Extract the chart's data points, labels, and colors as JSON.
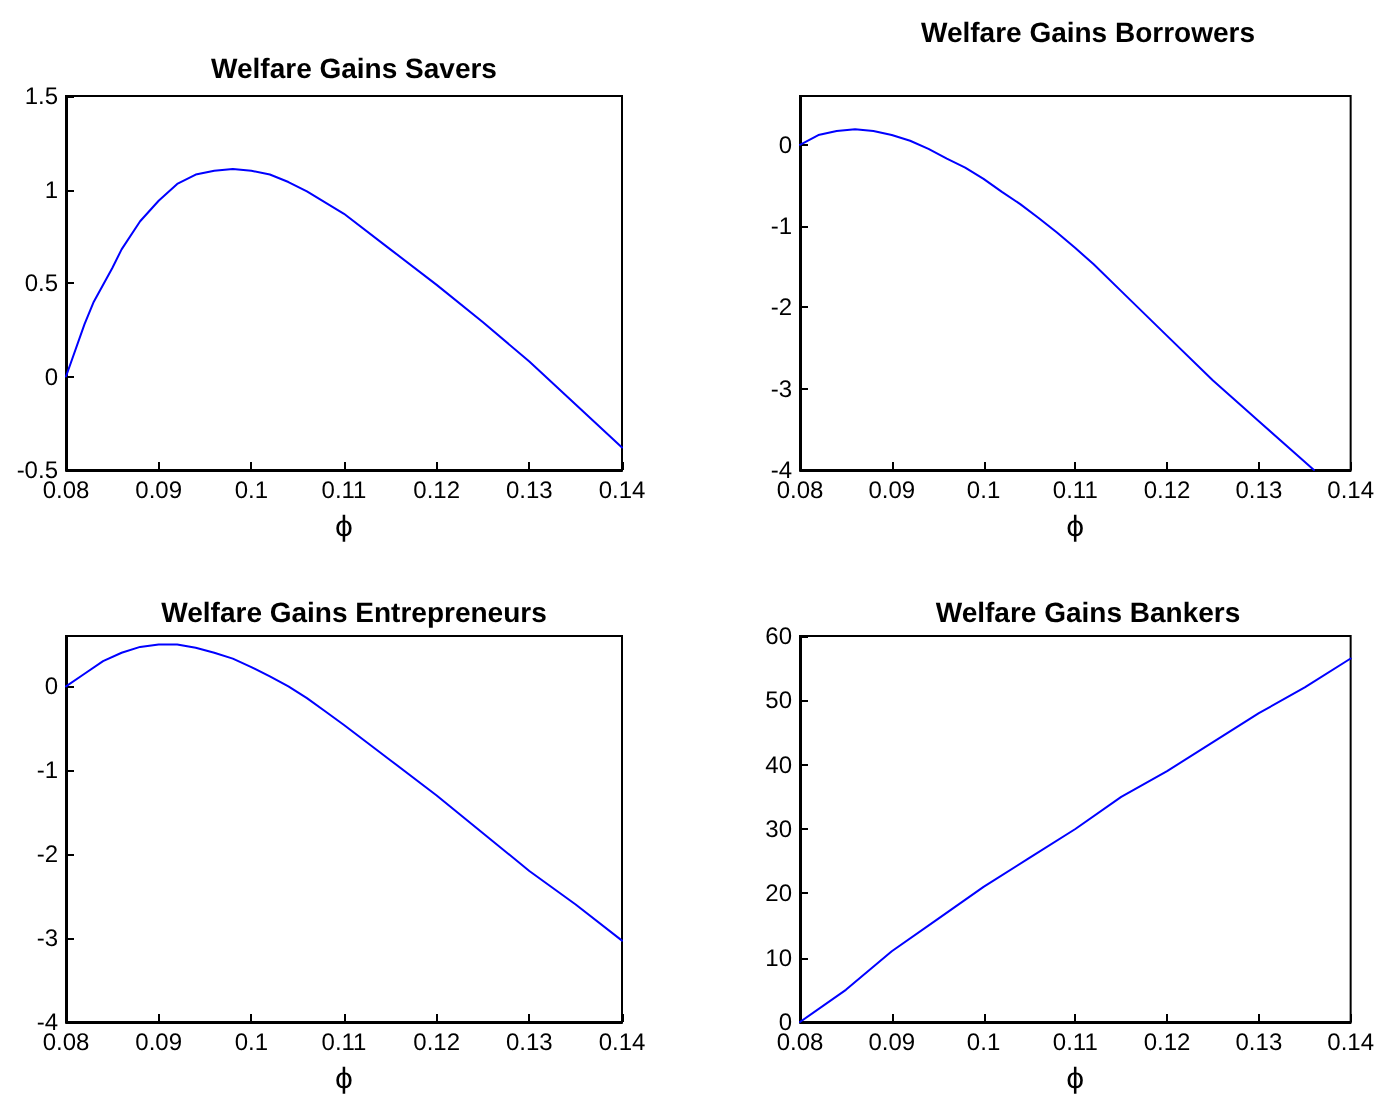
{
  "chart_data": [
    {
      "type": "line",
      "title": "Welfare Gains Savers",
      "xlabel": "ϕ",
      "xlim": [
        0.08,
        0.14
      ],
      "xticks": [
        0.08,
        0.09,
        0.1,
        0.11,
        0.12,
        0.13,
        0.14
      ],
      "ylim": [
        -0.5,
        1.5
      ],
      "yticks": [
        -0.5,
        0,
        0.5,
        1,
        1.5
      ],
      "grid": false,
      "marker": "none",
      "line_style": "solid",
      "series": [
        {
          "color": "#0000ff",
          "x": [
            0.08,
            0.082,
            0.083,
            0.085,
            0.086,
            0.088,
            0.09,
            0.092,
            0.094,
            0.096,
            0.098,
            0.1,
            0.102,
            0.104,
            0.106,
            0.108,
            0.11,
            0.115,
            0.12,
            0.125,
            0.13,
            0.135,
            0.14
          ],
          "values": [
            0,
            0.28,
            0.4,
            0.58,
            0.68,
            0.83,
            0.94,
            1.03,
            1.08,
            1.1,
            1.11,
            1.1,
            1.08,
            1.04,
            0.99,
            0.93,
            0.87,
            0.68,
            0.49,
            0.29,
            0.08,
            -0.15,
            -0.38
          ]
        }
      ]
    },
    {
      "type": "line",
      "title": "Welfare Gains Borrowers",
      "xlabel": "ϕ",
      "xlim": [
        0.08,
        0.14
      ],
      "xticks": [
        0.08,
        0.09,
        0.1,
        0.11,
        0.12,
        0.13,
        0.14
      ],
      "ylim": [
        -4,
        0.6
      ],
      "yticks": [
        -4,
        -3,
        -2,
        -1,
        0
      ],
      "grid": false,
      "marker": "none",
      "line_style": "solid",
      "series": [
        {
          "color": "#0000ff",
          "x": [
            0.08,
            0.082,
            0.084,
            0.086,
            0.088,
            0.09,
            0.092,
            0.094,
            0.096,
            0.098,
            0.1,
            0.102,
            0.104,
            0.106,
            0.108,
            0.11,
            0.112,
            0.115,
            0.12,
            0.125,
            0.13,
            0.134,
            0.136
          ],
          "values": [
            0,
            0.12,
            0.17,
            0.19,
            0.17,
            0.12,
            0.05,
            -0.05,
            -0.17,
            -0.28,
            -0.42,
            -0.58,
            -0.73,
            -0.9,
            -1.08,
            -1.27,
            -1.47,
            -1.8,
            -2.35,
            -2.9,
            -3.4,
            -3.8,
            -4
          ]
        }
      ]
    },
    {
      "type": "line",
      "title": "Welfare Gains Entrepreneurs",
      "xlabel": "ϕ",
      "xlim": [
        0.08,
        0.14
      ],
      "xticks": [
        0.08,
        0.09,
        0.1,
        0.11,
        0.12,
        0.13,
        0.14
      ],
      "ylim": [
        -4,
        0.6
      ],
      "yticks": [
        -4,
        -3,
        -2,
        -1,
        0
      ],
      "grid": false,
      "marker": "none",
      "line_style": "solid",
      "series": [
        {
          "color": "#0000ff",
          "x": [
            0.08,
            0.082,
            0.084,
            0.086,
            0.088,
            0.09,
            0.092,
            0.094,
            0.096,
            0.098,
            0.1,
            0.102,
            0.104,
            0.106,
            0.108,
            0.11,
            0.115,
            0.12,
            0.125,
            0.13,
            0.135,
            0.14
          ],
          "values": [
            0,
            0.15,
            0.3,
            0.4,
            0.47,
            0.5,
            0.5,
            0.46,
            0.4,
            0.33,
            0.23,
            0.12,
            0,
            -0.14,
            -0.3,
            -0.46,
            -0.88,
            -1.3,
            -1.75,
            -2.2,
            -2.6,
            -3.03
          ]
        }
      ]
    },
    {
      "type": "line",
      "title": "Welfare Gains Bankers",
      "xlabel": "ϕ",
      "xlim": [
        0.08,
        0.14
      ],
      "xticks": [
        0.08,
        0.09,
        0.1,
        0.11,
        0.12,
        0.13,
        0.14
      ],
      "ylim": [
        0,
        60
      ],
      "yticks": [
        0,
        10,
        20,
        30,
        40,
        50,
        60
      ],
      "grid": false,
      "marker": "none",
      "line_style": "solid",
      "series": [
        {
          "color": "#0000ff",
          "x": [
            0.08,
            0.085,
            0.09,
            0.095,
            0.1,
            0.105,
            0.11,
            0.115,
            0.12,
            0.125,
            0.13,
            0.135,
            0.14
          ],
          "values": [
            0,
            5,
            11,
            16,
            21,
            25.5,
            30,
            35,
            39,
            43.5,
            48,
            52,
            56.5
          ]
        }
      ]
    }
  ]
}
